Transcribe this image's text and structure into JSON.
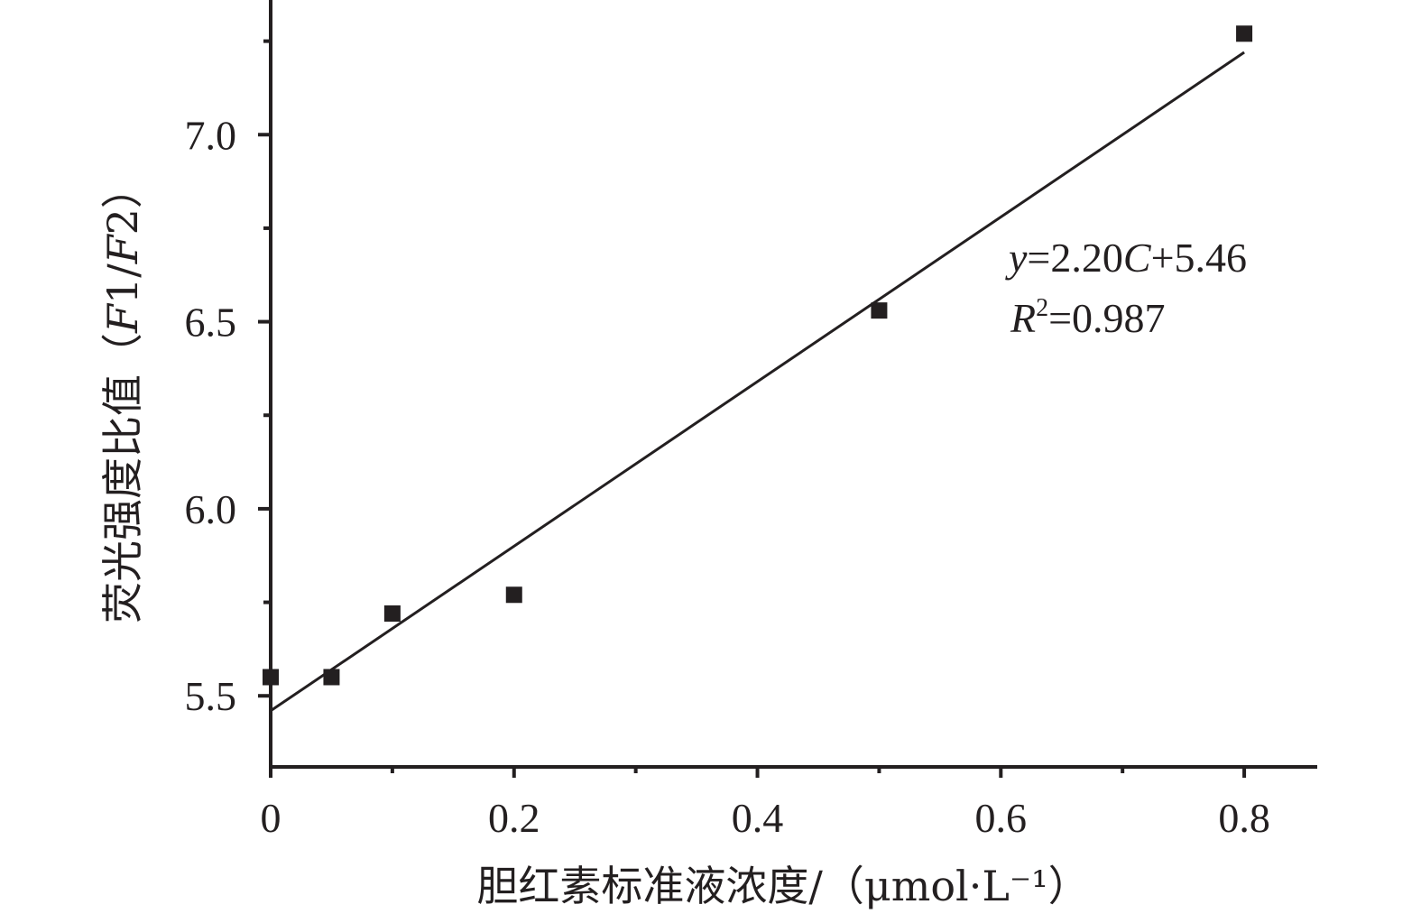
{
  "chart_data": {
    "type": "scatter",
    "xlabel": "胆红素标准液浓度/（μmol·L⁻¹）",
    "ylabel": "荧光强度比值（F1/F2）",
    "ylabel_parts": {
      "prefix": "荧光强度比值（",
      "italic_a": "F",
      "num_a": "1/",
      "italic_b": "F",
      "num_b": "2）"
    },
    "xlim": [
      0,
      0.86
    ],
    "ylim": [
      5.31,
      7.36
    ],
    "x_ticks": [
      0,
      0.2,
      0.4,
      0.6,
      0.8
    ],
    "x_tick_labels": [
      "0",
      "0.2",
      "0.4",
      "0.6",
      "0.8"
    ],
    "x_minor_ticks": [
      0.1,
      0.3,
      0.5,
      0.7
    ],
    "y_ticks": [
      5.5,
      6.0,
      6.5,
      7.0
    ],
    "y_tick_labels": [
      "5.5",
      "6.0",
      "6.5",
      "7.0"
    ],
    "y_minor_ticks": [
      5.75,
      6.25,
      6.75,
      7.25
    ],
    "series": [
      {
        "marker": "square",
        "color": "#231f20",
        "x": [
          0,
          0.05,
          0.1,
          0.2,
          0.5,
          0.8
        ],
        "y": [
          5.55,
          5.55,
          5.72,
          5.77,
          6.53,
          7.27
        ]
      }
    ],
    "fit_line": {
      "slope": 2.2,
      "intercept": 5.46,
      "x_range": [
        0,
        0.8
      ]
    },
    "annotation": {
      "equation": {
        "y": "y",
        "eq1": "=2.20",
        "c": "C",
        "rest": "+5.46"
      },
      "r2": {
        "r": "R",
        "sup": "2",
        "rest": "=0.987"
      }
    },
    "grid": false
  }
}
